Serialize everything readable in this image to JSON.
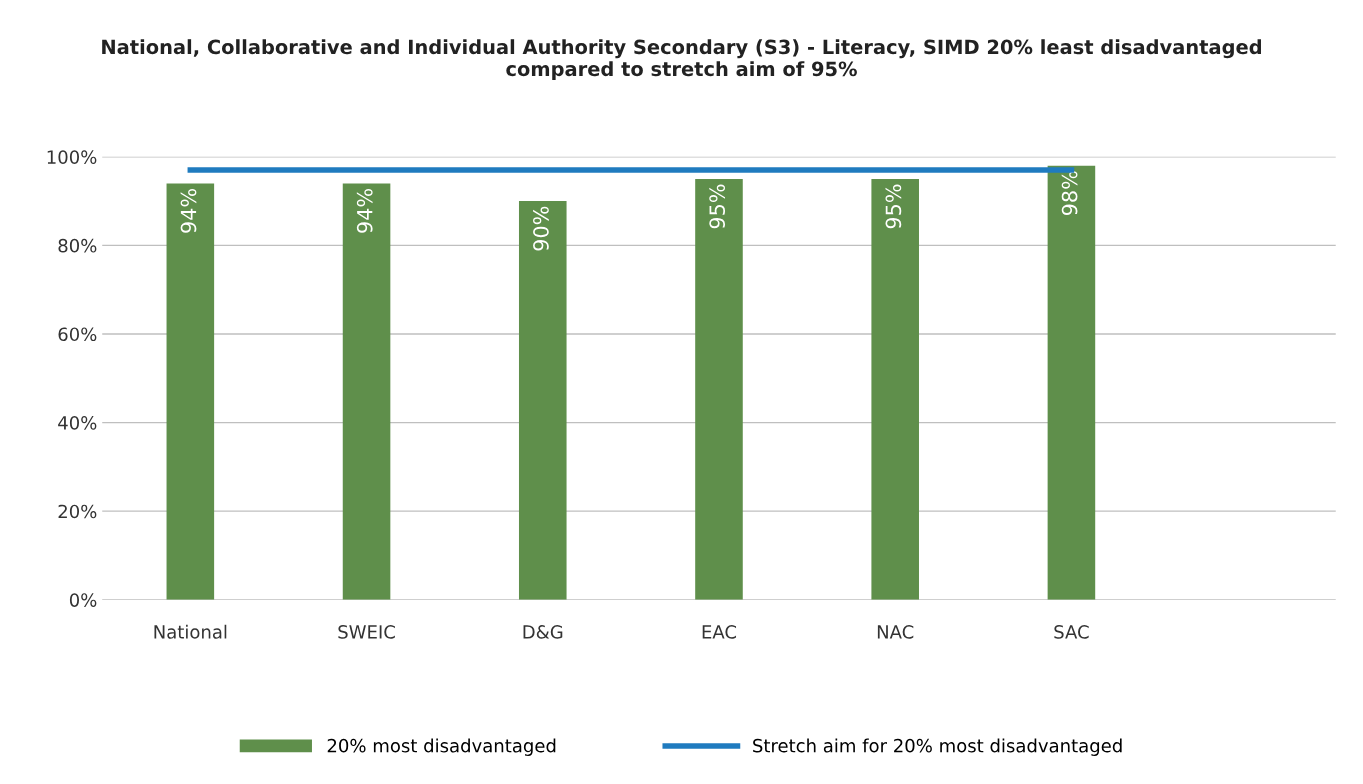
{
  "chart_data": {
    "type": "bar",
    "title": "National, Collaborative and Individual Authority Secondary (S3) - Literacy, SIMD 20% least disadvantaged\ncompared to stretch aim of 95%",
    "categories": [
      "National",
      "SWEIC",
      "D&G",
      "EAC",
      "NAC",
      "SAC"
    ],
    "series": [
      {
        "name": "20% most disadvantaged",
        "color": "#5f8f4b",
        "values": [
          94,
          94,
          90,
          95,
          95,
          98
        ],
        "value_labels": [
          "94%",
          "94%",
          "90%",
          "95%",
          "95%",
          "98%"
        ]
      },
      {
        "name": "Stretch aim for 20% most disadvantaged",
        "type": "line",
        "color": "#1f7bbf",
        "values": [
          97,
          97,
          97,
          97,
          97,
          97
        ]
      }
    ],
    "ylim": [
      0,
      100
    ],
    "yticks": [
      {
        "value": 0,
        "label": "0%"
      },
      {
        "value": 20,
        "label": "20%"
      },
      {
        "value": 40,
        "label": "40%"
      },
      {
        "value": 60,
        "label": "60%"
      },
      {
        "value": 80,
        "label": "80%"
      },
      {
        "value": 100,
        "label": "100%"
      }
    ],
    "grid": "y",
    "legend": "bottom",
    "marker": "none"
  }
}
